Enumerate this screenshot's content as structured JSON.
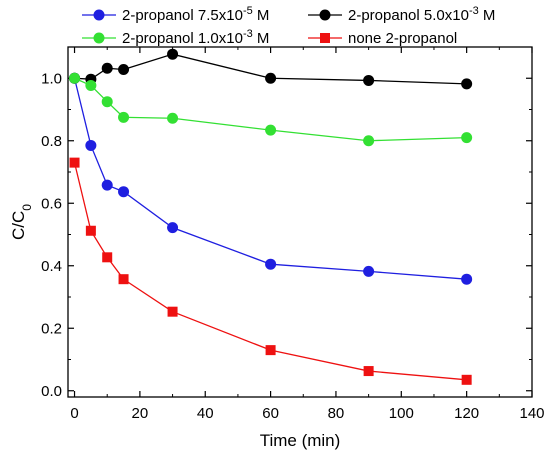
{
  "chart_data": {
    "type": "line",
    "xlabel": "Time (min)",
    "ylabel": "C/C",
    "ylabel_sub": "0",
    "xlim": [
      -2,
      140
    ],
    "ylim": [
      -0.02,
      1.1
    ],
    "x_ticks": [
      0,
      20,
      40,
      60,
      80,
      100,
      120,
      140
    ],
    "y_ticks": [
      0.0,
      0.2,
      0.4,
      0.6,
      0.8,
      1.0
    ],
    "x_tick_labels": [
      "0",
      "20",
      "40",
      "60",
      "80",
      "100",
      "120",
      "140"
    ],
    "y_tick_labels": [
      "0.0",
      "0.2",
      "0.4",
      "0.6",
      "0.8",
      "1.0"
    ],
    "grid": false,
    "legend_placement": "top",
    "series": [
      {
        "name": "2-propanol 7.5x10",
        "name_sup": "-5",
        "name_suffix": " M",
        "color": "#1f1fe0",
        "marker": "circle",
        "x": [
          0,
          5,
          10,
          15,
          30,
          60,
          90,
          120
        ],
        "y": [
          1.0,
          0.785,
          0.658,
          0.637,
          0.522,
          0.405,
          0.382,
          0.357
        ]
      },
      {
        "name": "2-propanol 5.0x10",
        "name_sup": "-3",
        "name_suffix": " M",
        "color": "#000000",
        "marker": "circle",
        "x": [
          0,
          5,
          10,
          15,
          30,
          60,
          90,
          120
        ],
        "y": [
          1.0,
          0.997,
          1.032,
          1.028,
          1.077,
          1.0,
          0.993,
          0.982
        ]
      },
      {
        "name": "2-propanol 1.0x10",
        "name_sup": "-3",
        "name_suffix": " M",
        "color": "#33e033",
        "marker": "circle",
        "x": [
          0,
          5,
          10,
          15,
          30,
          60,
          90,
          120
        ],
        "y": [
          1.0,
          0.977,
          0.925,
          0.875,
          0.872,
          0.834,
          0.8,
          0.81
        ]
      },
      {
        "name": "none 2-propanol",
        "name_sup": "",
        "name_suffix": "",
        "color": "#ee1111",
        "marker": "square",
        "x": [
          0,
          5,
          10,
          15,
          30,
          60,
          90,
          120
        ],
        "y": [
          0.73,
          0.512,
          0.427,
          0.357,
          0.253,
          0.13,
          0.063,
          0.035
        ]
      }
    ]
  }
}
